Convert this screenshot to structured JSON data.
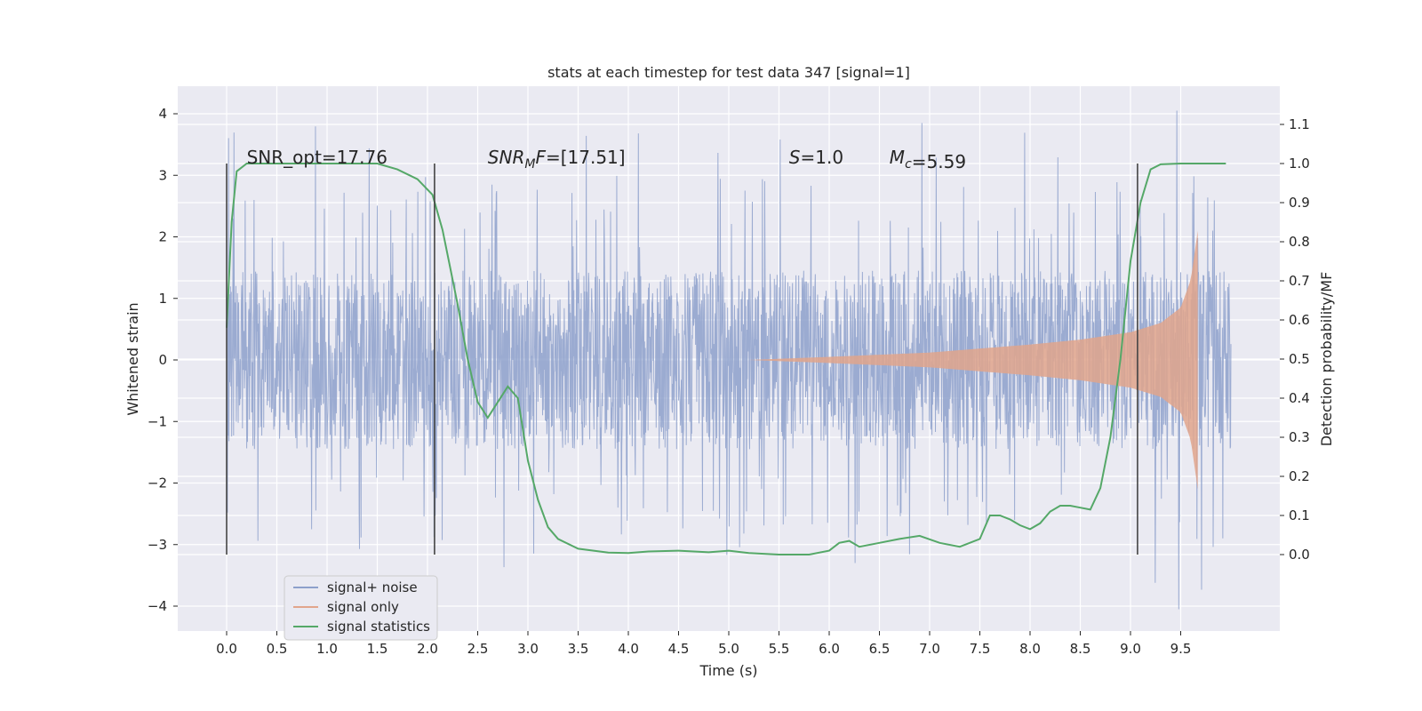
{
  "chart_data": {
    "type": "line",
    "title": "stats at each timestep for test data 347 [signal=1]",
    "xlabel": "Time (s)",
    "ylabel": "Whitened strain",
    "ylabel_right": "Detection probability/MF",
    "xlim": [
      -0.5,
      10.5
    ],
    "ylim": [
      -4.45,
      4.45
    ],
    "ylim_right": [
      -0.2,
      1.2
    ],
    "x_ticks": [
      "0.0",
      "0.5",
      "1.0",
      "1.5",
      "2.0",
      "2.5",
      "3.0",
      "3.5",
      "4.0",
      "4.5",
      "5.0",
      "5.5",
      "6.0",
      "6.5",
      "7.0",
      "7.5",
      "8.0",
      "8.5",
      "9.0",
      "9.5"
    ],
    "y_ticks": [
      "4",
      "3",
      "2",
      "1",
      "0",
      "−1",
      "−2",
      "−3",
      "−4"
    ],
    "y_right_ticks": [
      "1.1",
      "1.0",
      "0.9",
      "0.8",
      "0.7",
      "0.6",
      "0.5",
      "0.4",
      "0.3",
      "0.2",
      "0.1",
      "0.0"
    ],
    "grid": true,
    "legend_position": "lower-left",
    "annotations": [
      {
        "label": "SNR_opt",
        "value": "17.76",
        "at_x": 0.2
      },
      {
        "label": "SNR",
        "sub": "M",
        "suffix": "F",
        "value": "[17.51]",
        "at_x": 2.6
      },
      {
        "label": "S",
        "value": "1.0",
        "at_x": 5.6
      },
      {
        "label": "M",
        "sub": "c",
        "value": "5.59",
        "at_x": 6.6
      }
    ],
    "vertical_markers_x": [
      0.0,
      2.07,
      9.07
    ],
    "series": [
      {
        "name": "signal+ noise",
        "color": "#8da0cb",
        "x_range": [
          0.0,
          10.0
        ],
        "envelope_abs": 1.3,
        "spike_max": 4.05,
        "spike_min": -4.05
      },
      {
        "name": "signal only",
        "color": "#e1a58c",
        "x": [
          5.2,
          6.0,
          7.0,
          8.0,
          8.5,
          9.0,
          9.3,
          9.5,
          9.6,
          9.67
        ],
        "amplitude": [
          0.0,
          0.05,
          0.12,
          0.25,
          0.33,
          0.45,
          0.6,
          0.85,
          1.3,
          2.1
        ]
      },
      {
        "name": "signal statistics",
        "color": "#55a868",
        "x": [
          0.0,
          0.05,
          0.1,
          0.2,
          0.5,
          1.0,
          1.5,
          1.7,
          1.9,
          2.05,
          2.15,
          2.3,
          2.4,
          2.5,
          2.6,
          2.7,
          2.8,
          2.9,
          3.0,
          3.1,
          3.2,
          3.3,
          3.5,
          3.8,
          4.0,
          4.2,
          4.5,
          4.8,
          5.0,
          5.2,
          5.5,
          5.8,
          6.0,
          6.1,
          6.2,
          6.3,
          6.5,
          6.7,
          6.9,
          7.1,
          7.3,
          7.5,
          7.6,
          7.7,
          7.8,
          7.9,
          8.0,
          8.1,
          8.2,
          8.3,
          8.4,
          8.5,
          8.6,
          8.7,
          8.8,
          8.9,
          9.0,
          9.1,
          9.2,
          9.3,
          9.5,
          9.8,
          9.95
        ],
        "y": [
          0.58,
          0.85,
          0.98,
          1.0,
          1.0,
          1.0,
          1.0,
          0.985,
          0.96,
          0.92,
          0.83,
          0.64,
          0.5,
          0.39,
          0.35,
          0.39,
          0.43,
          0.4,
          0.24,
          0.14,
          0.07,
          0.04,
          0.015,
          0.005,
          0.004,
          0.008,
          0.01,
          0.006,
          0.01,
          0.004,
          0.0,
          0.0,
          0.01,
          0.03,
          0.035,
          0.02,
          0.03,
          0.04,
          0.048,
          0.03,
          0.02,
          0.04,
          0.1,
          0.1,
          0.09,
          0.075,
          0.065,
          0.08,
          0.11,
          0.125,
          0.125,
          0.12,
          0.115,
          0.17,
          0.3,
          0.5,
          0.75,
          0.9,
          0.985,
          0.998,
          1.0,
          1.0,
          1.0
        ]
      }
    ]
  }
}
